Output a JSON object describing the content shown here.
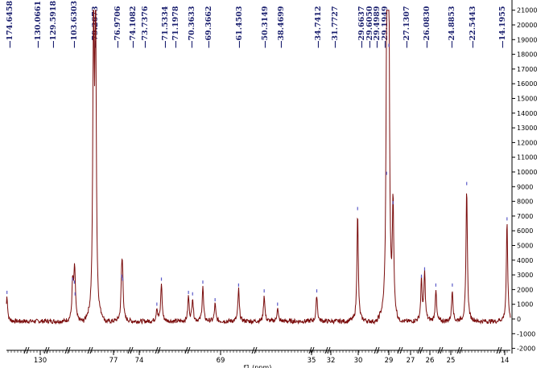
{
  "chart_data": {
    "type": "line",
    "xlabel": "f1 (ppm)",
    "ylabel": "",
    "ylim": [
      -2000,
      21000
    ],
    "y_ticks": [
      -2000,
      -1000,
      0,
      1000,
      2000,
      3000,
      4000,
      5000,
      6000,
      7000,
      8000,
      9000,
      10000,
      11000,
      12000,
      13000,
      14000,
      15000,
      16000,
      17000,
      18000,
      19000,
      20000,
      21000
    ],
    "x_ticks": [
      "130",
      "77",
      "74",
      "69",
      "35",
      "32",
      "30",
      "29",
      "27",
      "26",
      "25",
      "14"
    ],
    "peak_labels": [
      "174.6458",
      "130.0661",
      "129.5918",
      "103.6303",
      "79.2673",
      "76.9706",
      "74.1082",
      "73.7376",
      "71.5334",
      "71.1978",
      "70.3633",
      "69.3662",
      "61.4503",
      "50.3149",
      "38.4699",
      "34.7412",
      "31.7727",
      "29.6637",
      "29.6050",
      "29.4989",
      "29.1949",
      "27.1307",
      "26.0830",
      "24.8853",
      "22.5443",
      "14.1955"
    ],
    "peaks": [
      {
        "ppm": 174.6458,
        "height": 1700
      },
      {
        "ppm": 130.0661,
        "height": 2400
      },
      {
        "ppm": 129.5918,
        "height": 1600
      },
      {
        "ppm": 103.6303,
        "height": 2600
      },
      {
        "ppm": 79.2673,
        "height": 21000
      },
      {
        "ppm": 79.1,
        "height": 21000
      },
      {
        "ppm": 76.9706,
        "height": 2800
      },
      {
        "ppm": 76.9,
        "height": 2600
      },
      {
        "ppm": 74.1082,
        "height": 900
      },
      {
        "ppm": 73.7376,
        "height": 2600
      },
      {
        "ppm": 71.5334,
        "height": 1700
      },
      {
        "ppm": 71.1978,
        "height": 1600
      },
      {
        "ppm": 70.3633,
        "height": 2400
      },
      {
        "ppm": 69.3662,
        "height": 1200
      },
      {
        "ppm": 61.4503,
        "height": 2200
      },
      {
        "ppm": 50.3149,
        "height": 1800
      },
      {
        "ppm": 38.4699,
        "height": 900
      },
      {
        "ppm": 34.7412,
        "height": 1800
      },
      {
        "ppm": 31.7727,
        "height": 7400
      },
      {
        "ppm": 29.6637,
        "height": 9800
      },
      {
        "ppm": 29.605,
        "height": 21000
      },
      {
        "ppm": 29.4989,
        "height": 18500
      },
      {
        "ppm": 29.1949,
        "height": 7800
      },
      {
        "ppm": 27.1307,
        "height": 2800
      },
      {
        "ppm": 26.9,
        "height": 3300
      },
      {
        "ppm": 26.083,
        "height": 2200
      },
      {
        "ppm": 24.8853,
        "height": 2200
      },
      {
        "ppm": 22.5443,
        "height": 9100
      },
      {
        "ppm": 14.1955,
        "height": 6700
      }
    ],
    "colors": {
      "spectrum": "#7a0c0c",
      "labels": "#1a1f6e",
      "axis": "#000000"
    }
  }
}
